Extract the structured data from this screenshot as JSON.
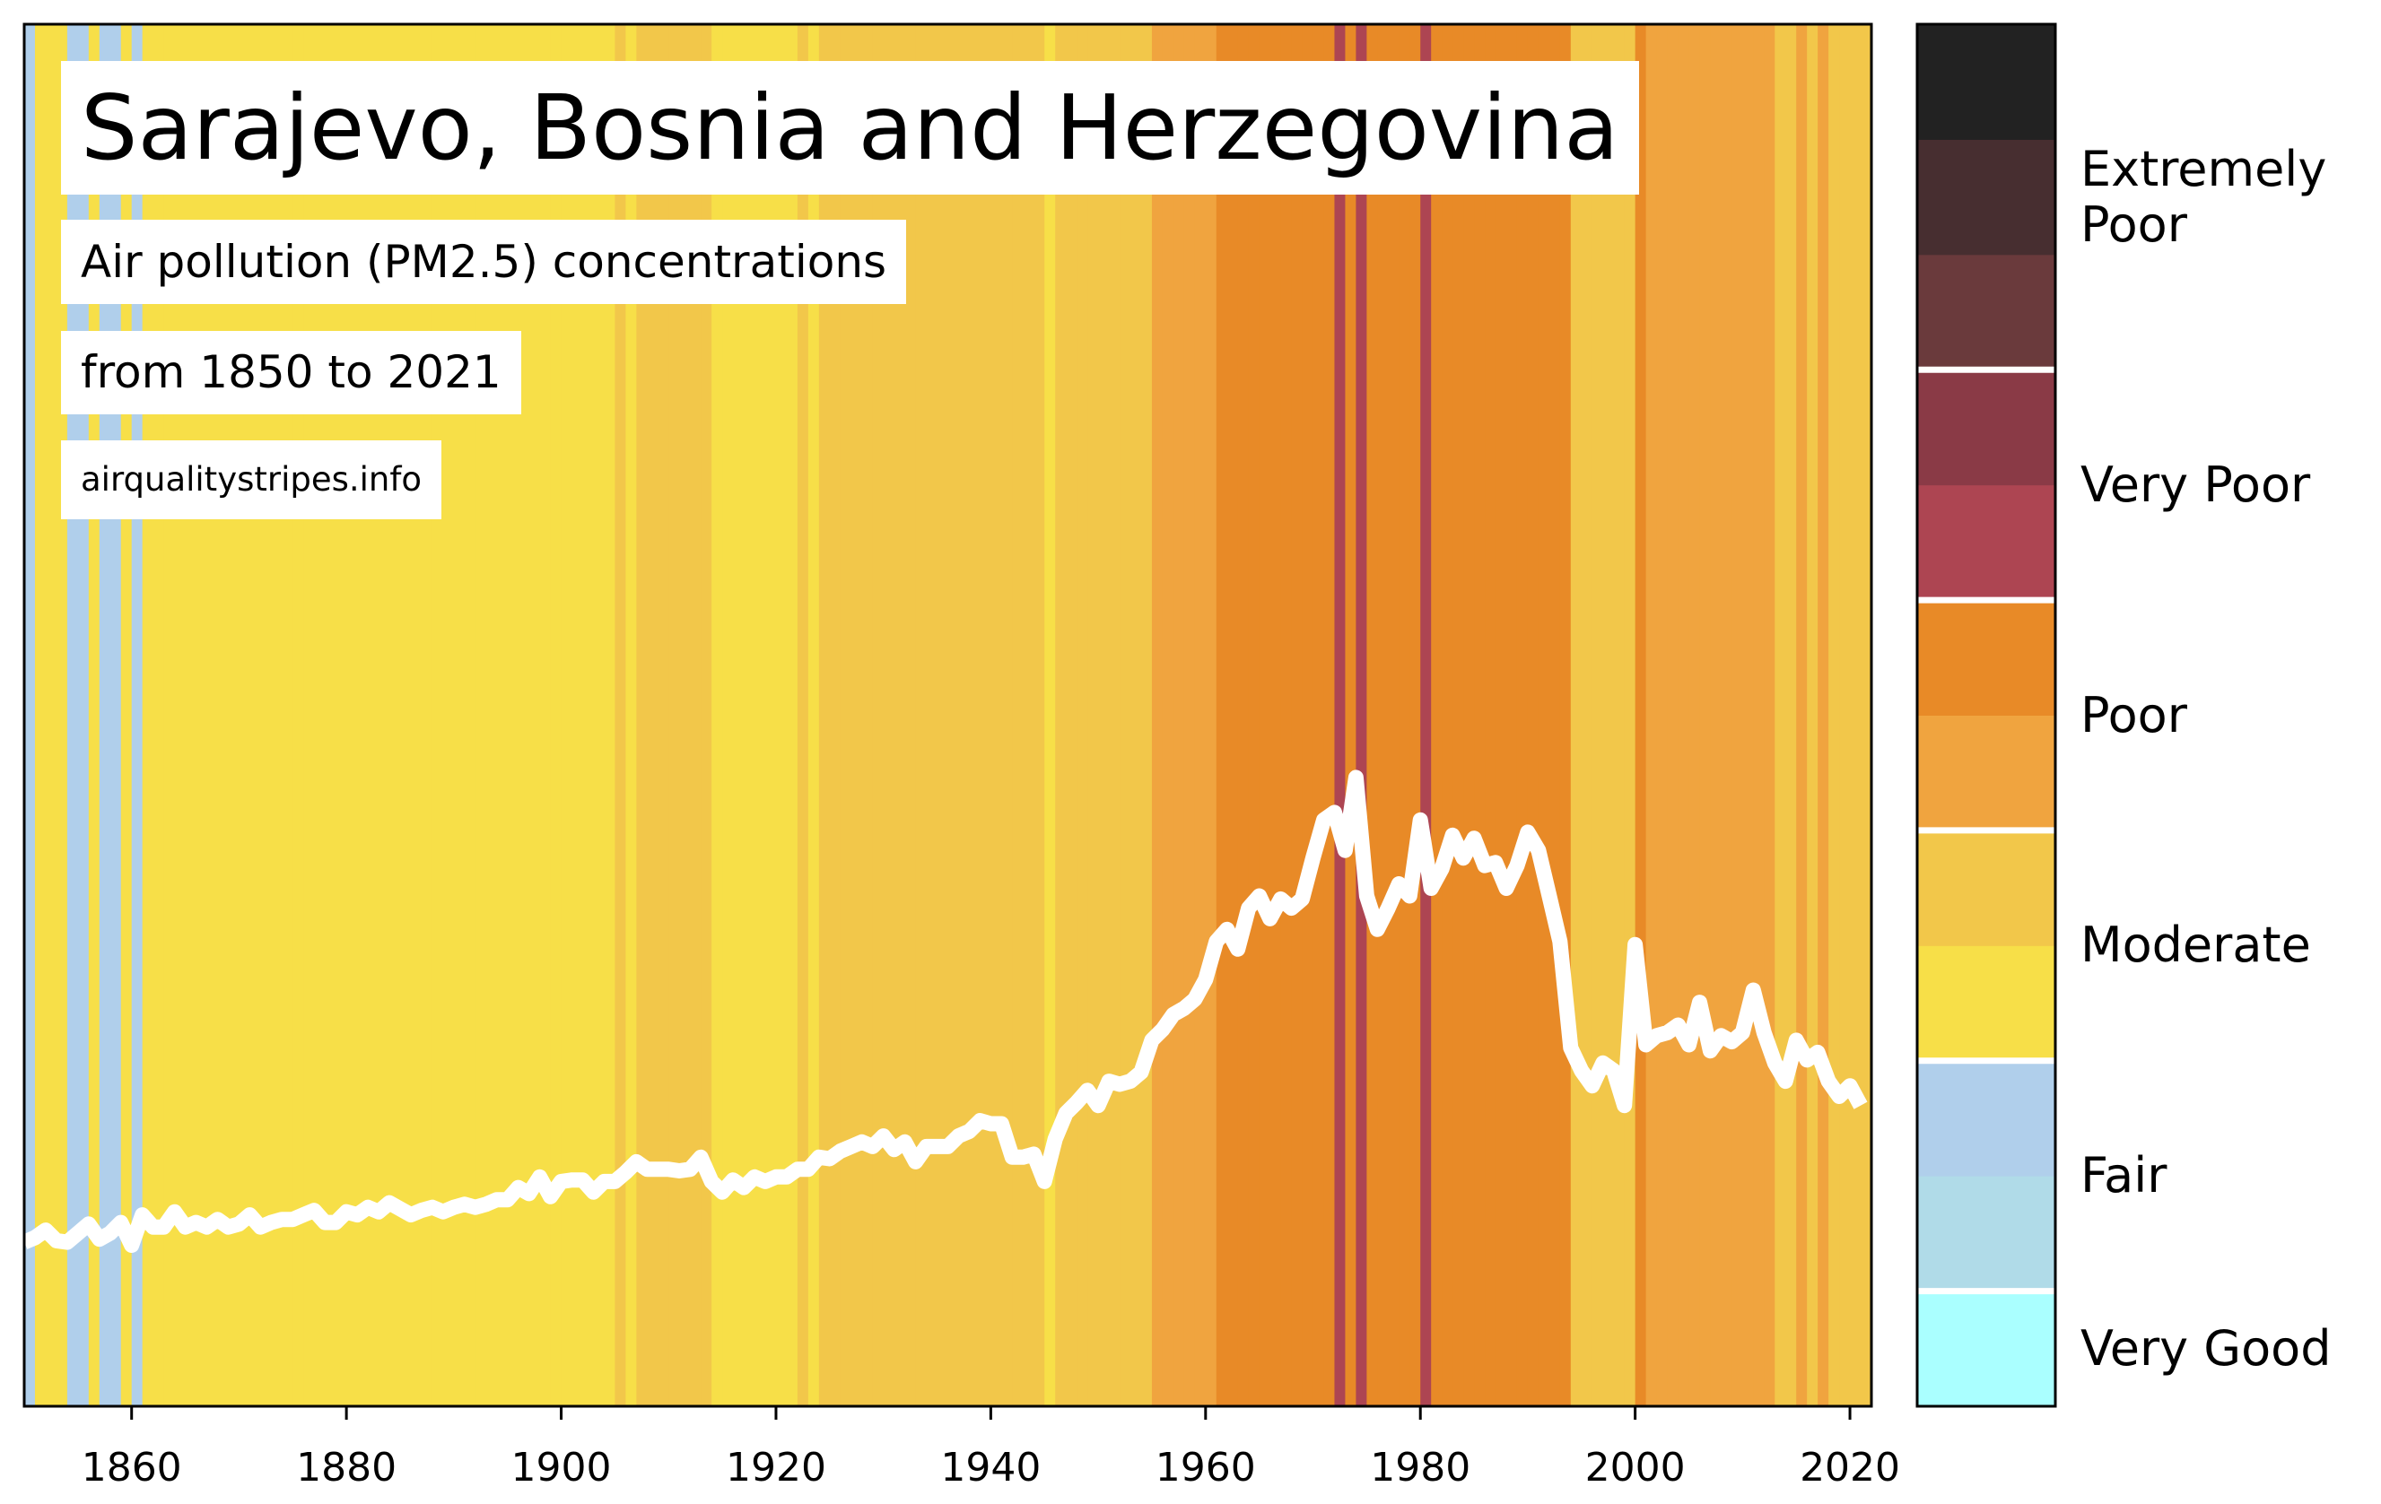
{
  "chart_data": {
    "type": "stripes",
    "title": "Sarajevo, Bosnia and Herzegovina",
    "subtitle": [
      "Air pollution (PM2.5) concentrations",
      "from 1850 to 2021"
    ],
    "source": "airqualitystripes.info",
    "xlim": [
      1850,
      2022
    ],
    "xticks": [
      1860,
      1880,
      1900,
      1920,
      1940,
      1960,
      1980,
      2000,
      2020
    ],
    "ylim": [
      0,
      91
    ],
    "line_color": "#ffffff",
    "x": [
      1850,
      1851,
      1852,
      1853,
      1854,
      1855,
      1856,
      1857,
      1858,
      1859,
      1860,
      1861,
      1862,
      1863,
      1864,
      1865,
      1866,
      1867,
      1868,
      1869,
      1870,
      1871,
      1872,
      1873,
      1874,
      1875,
      1876,
      1877,
      1878,
      1879,
      1880,
      1881,
      1882,
      1883,
      1884,
      1885,
      1886,
      1887,
      1888,
      1889,
      1890,
      1891,
      1892,
      1893,
      1894,
      1895,
      1896,
      1897,
      1898,
      1899,
      1900,
      1901,
      1902,
      1903,
      1904,
      1905,
      1906,
      1907,
      1908,
      1909,
      1910,
      1911,
      1912,
      1913,
      1914,
      1915,
      1916,
      1917,
      1918,
      1919,
      1920,
      1921,
      1922,
      1923,
      1924,
      1925,
      1926,
      1927,
      1928,
      1929,
      1930,
      1931,
      1932,
      1933,
      1934,
      1935,
      1936,
      1937,
      1938,
      1939,
      1940,
      1941,
      1942,
      1943,
      1944,
      1945,
      1946,
      1947,
      1948,
      1949,
      1950,
      1951,
      1952,
      1953,
      1954,
      1955,
      1956,
      1957,
      1958,
      1959,
      1960,
      1961,
      1962,
      1963,
      1964,
      1965,
      1966,
      1967,
      1968,
      1969,
      1970,
      1971,
      1972,
      1973,
      1974,
      1975,
      1976,
      1977,
      1978,
      1979,
      1980,
      1981,
      1982,
      1983,
      1984,
      1985,
      1986,
      1987,
      1988,
      1989,
      1990,
      1991,
      1992,
      1993,
      1994,
      1995,
      1996,
      1997,
      1998,
      1999,
      2000,
      2001,
      2002,
      2003,
      2004,
      2005,
      2006,
      2007,
      2008,
      2009,
      2010,
      2011,
      2012,
      2013,
      2014,
      2015,
      2016,
      2017,
      2018,
      2019,
      2020,
      2021
    ],
    "values": [
      10.8,
      11.1,
      11.6,
      10.9,
      10.8,
      11.4,
      12.0,
      11.0,
      11.4,
      12.1,
      10.6,
      12.6,
      11.8,
      11.8,
      12.8,
      11.8,
      12.1,
      11.8,
      12.3,
      11.8,
      12.0,
      12.6,
      11.8,
      12.1,
      12.3,
      12.3,
      12.6,
      12.9,
      12.1,
      12.1,
      12.8,
      12.6,
      13.1,
      12.8,
      13.4,
      13.0,
      12.6,
      12.9,
      13.1,
      12.8,
      13.1,
      13.3,
      13.1,
      13.3,
      13.6,
      13.6,
      14.4,
      14.0,
      15.1,
      13.8,
      14.8,
      14.9,
      14.9,
      14.1,
      14.8,
      14.8,
      15.4,
      16.1,
      15.6,
      15.6,
      15.6,
      15.5,
      15.6,
      16.4,
      14.8,
      14.1,
      14.9,
      14.4,
      15.1,
      14.8,
      15.1,
      15.1,
      15.6,
      15.6,
      16.4,
      16.3,
      16.8,
      17.1,
      17.4,
      17.1,
      17.8,
      16.9,
      17.4,
      16.1,
      17.1,
      17.1,
      17.1,
      17.8,
      18.1,
      18.8,
      18.6,
      18.6,
      16.4,
      16.4,
      16.6,
      14.8,
      17.6,
      19.3,
      20.0,
      20.8,
      19.8,
      21.4,
      21.2,
      21.4,
      22.0,
      24.1,
      24.8,
      25.8,
      26.2,
      26.8,
      28.1,
      30.6,
      31.4,
      30.1,
      32.8,
      33.6,
      32.1,
      33.4,
      32.8,
      33.4,
      36.1,
      38.6,
      39.1,
      36.6,
      41.4,
      33.6,
      31.4,
      32.8,
      34.4,
      33.6,
      38.6,
      34.1,
      35.4,
      37.6,
      36.1,
      37.4,
      35.6,
      35.8,
      34.1,
      35.6,
      37.8,
      36.6,
      33.6,
      30.6,
      23.6,
      22.1,
      21.1,
      22.6,
      22.1,
      19.8,
      30.4,
      23.8,
      24.4,
      24.6,
      25.1,
      23.8,
      26.6,
      23.4,
      24.4,
      24.0,
      24.6,
      27.4,
      24.6,
      22.6,
      21.4,
      24.1,
      22.8,
      23.3,
      21.4,
      20.4,
      21.1,
      19.8
    ],
    "stripe_colors": [
      "#b0cfeb",
      "#f7df48",
      "#f7df48",
      "#f7df48",
      "#b0cfeb",
      "#b0cfeb",
      "#f7df48",
      "#b0cfeb",
      "#b0cfeb",
      "#f7df48",
      "#b0cfeb",
      "#f7df48",
      "#f7df48",
      "#f7df48",
      "#f7df48",
      "#f7df48",
      "#f7df48",
      "#f7df48",
      "#f7df48",
      "#f7df48",
      "#f7df48",
      "#f7df48",
      "#f7df48",
      "#f7df48",
      "#f7df48",
      "#f7df48",
      "#f7df48",
      "#f7df48",
      "#f7df48",
      "#f7df48",
      "#f7df48",
      "#f7df48",
      "#f7df48",
      "#f7df48",
      "#f7df48",
      "#f7df48",
      "#f7df48",
      "#f7df48",
      "#f7df48",
      "#f7df48",
      "#f7df48",
      "#f7df48",
      "#f7df48",
      "#f7df48",
      "#f7df48",
      "#f7df48",
      "#f7df48",
      "#f7df48",
      "#f7df48",
      "#f7df48",
      "#f7df48",
      "#f7df48",
      "#f7df48",
      "#f7df48",
      "#f7df48",
      "#f2c74a",
      "#f7df48",
      "#f2c74a",
      "#f2c74a",
      "#f2c74a",
      "#f2c74a",
      "#f2c74a",
      "#f2c74a",
      "#f2c74a",
      "#f7df48",
      "#f7df48",
      "#f7df48",
      "#f7df48",
      "#f7df48",
      "#f7df48",
      "#f7df48",
      "#f7df48",
      "#f2c74a",
      "#f7df48",
      "#f2c74a",
      "#f2c74a",
      "#f2c74a",
      "#f2c74a",
      "#f2c74a",
      "#f2c74a",
      "#f2c74a",
      "#f2c74a",
      "#f2c74a",
      "#f2c74a",
      "#f2c74a",
      "#f2c74a",
      "#f2c74a",
      "#f2c74a",
      "#f2c74a",
      "#f2c74a",
      "#f2c74a",
      "#f2c74a",
      "#f2c74a",
      "#f2c74a",
      "#f2c74a",
      "#f7df48",
      "#f2c74a",
      "#f2c74a",
      "#f2c74a",
      "#f2c74a",
      "#f2c74a",
      "#f2c74a",
      "#f2c74a",
      "#f2c74a",
      "#f2c74a",
      "#f0a43f",
      "#f0a43f",
      "#f0a43f",
      "#f0a43f",
      "#f0a43f",
      "#f0a43f",
      "#e88a27",
      "#e88a27",
      "#e88a27",
      "#e88a27",
      "#e88a27",
      "#e88a27",
      "#e88a27",
      "#e88a27",
      "#e88a27",
      "#e88a27",
      "#e88a27",
      "#ad4552",
      "#e88a27",
      "#ad4552",
      "#e88a27",
      "#e88a27",
      "#e88a27",
      "#e88a27",
      "#e88a27",
      "#ad4552",
      "#e88a27",
      "#e88a27",
      "#e88a27",
      "#e88a27",
      "#e88a27",
      "#e88a27",
      "#e88a27",
      "#e88a27",
      "#e88a27",
      "#e88a27",
      "#e88a27",
      "#e88a27",
      "#e88a27",
      "#f2c74a",
      "#f2c74a",
      "#f2c74a",
      "#f2c74a",
      "#f2c74a",
      "#f2c74a",
      "#e88a27",
      "#f0a43f",
      "#f0a43f",
      "#f0a43f",
      "#f0a43f",
      "#f0a43f",
      "#f0a43f",
      "#f0a43f",
      "#f0a43f",
      "#f0a43f",
      "#f0a43f",
      "#f0a43f",
      "#f0a43f",
      "#f2c74a",
      "#f2c74a",
      "#f0a43f",
      "#f2c74a",
      "#f0a43f",
      "#f2c74a",
      "#f2c74a",
      "#f2c74a",
      "#f2c74a"
    ],
    "colorbar": {
      "groups": [
        {
          "label": "Very Good",
          "colors": [
            "#aaffff"
          ]
        },
        {
          "label": "Fair",
          "colors": [
            "#b0dbe8",
            "#b0cfeb"
          ]
        },
        {
          "label": "Moderate",
          "colors": [
            "#f7df48",
            "#f2c74a"
          ]
        },
        {
          "label": "Poor",
          "colors": [
            "#f0a43f",
            "#e88a27"
          ]
        },
        {
          "label": "Very Poor",
          "colors": [
            "#ad4552",
            "#8a3a46"
          ]
        },
        {
          "label": "Extremely Poor",
          "colors": [
            "#6a3a3c",
            "#472e30",
            "#222222"
          ]
        }
      ]
    }
  }
}
